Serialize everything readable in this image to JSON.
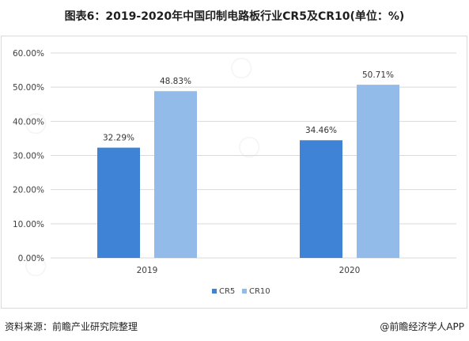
{
  "header": {
    "title": "图表6：2019-2020年中国印制电路板行业CR5及CR10(单位：%)"
  },
  "footer": {
    "source": "资料来源：前瞻产业研究院整理",
    "brand": "@前瞻经济学人APP"
  },
  "colors": {
    "cr5": "#3f83d6",
    "cr10": "#92bbe9",
    "grid": "#d9d9d9",
    "axis_text": "#404040"
  },
  "chart_data": {
    "type": "bar",
    "title": "",
    "xlabel": "",
    "ylabel": "",
    "categories": [
      "2019",
      "2020"
    ],
    "series": [
      {
        "name": "CR5",
        "values": [
          32.29,
          34.46
        ],
        "labels": [
          "32.29%",
          "34.46%"
        ]
      },
      {
        "name": "CR10",
        "values": [
          48.83,
          50.71
        ],
        "labels": [
          "48.83%",
          "50.71%"
        ]
      }
    ],
    "ylim": [
      0,
      60
    ],
    "yticks": [
      {
        "value": 0,
        "label": "0.00%"
      },
      {
        "value": 10,
        "label": "10.00%"
      },
      {
        "value": 20,
        "label": "20.00%"
      },
      {
        "value": 30,
        "label": "30.00%"
      },
      {
        "value": 40,
        "label": "40.00%"
      },
      {
        "value": 50,
        "label": "50.00%"
      },
      {
        "value": 60,
        "label": "60.00%"
      }
    ],
    "grid": true,
    "legend": "bottom-center"
  }
}
